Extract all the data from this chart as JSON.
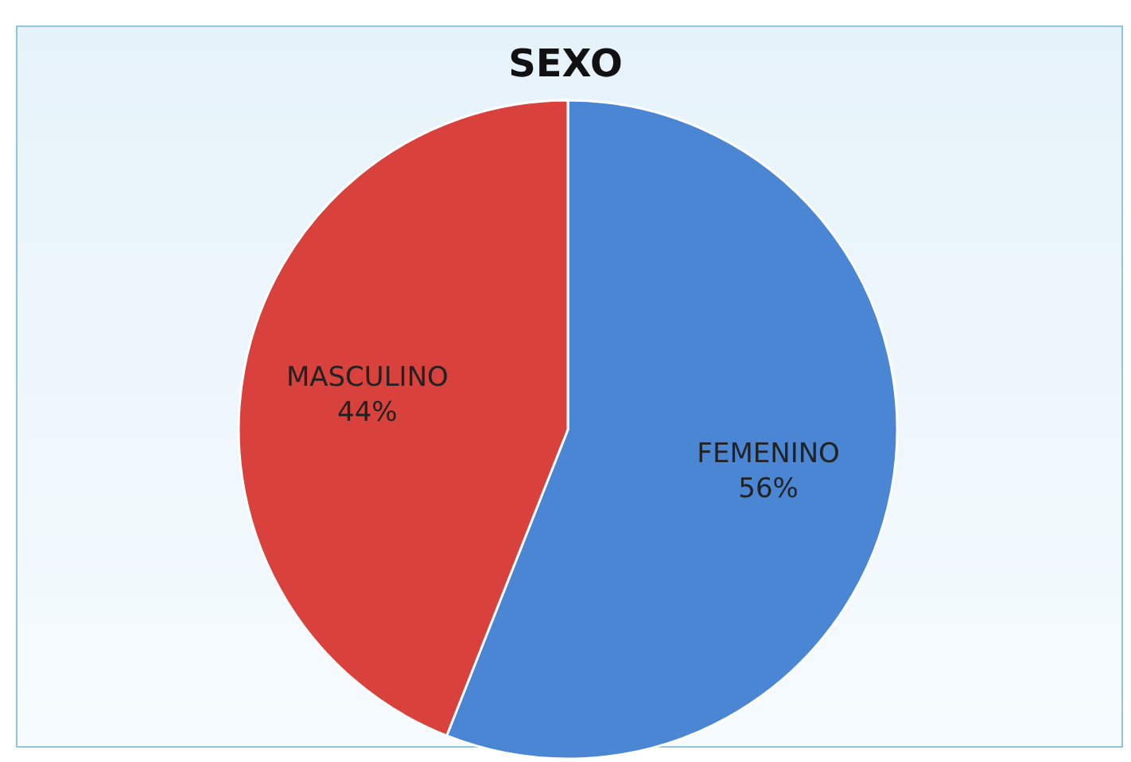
{
  "chart_data": {
    "type": "pie",
    "title": "SEXO",
    "categories": [
      "FEMENINO",
      "MASCULINO"
    ],
    "values": [
      56,
      44
    ],
    "colors": [
      "#4a86d4",
      "#d9413c"
    ],
    "value_labels": [
      "56%",
      "44%"
    ]
  }
}
